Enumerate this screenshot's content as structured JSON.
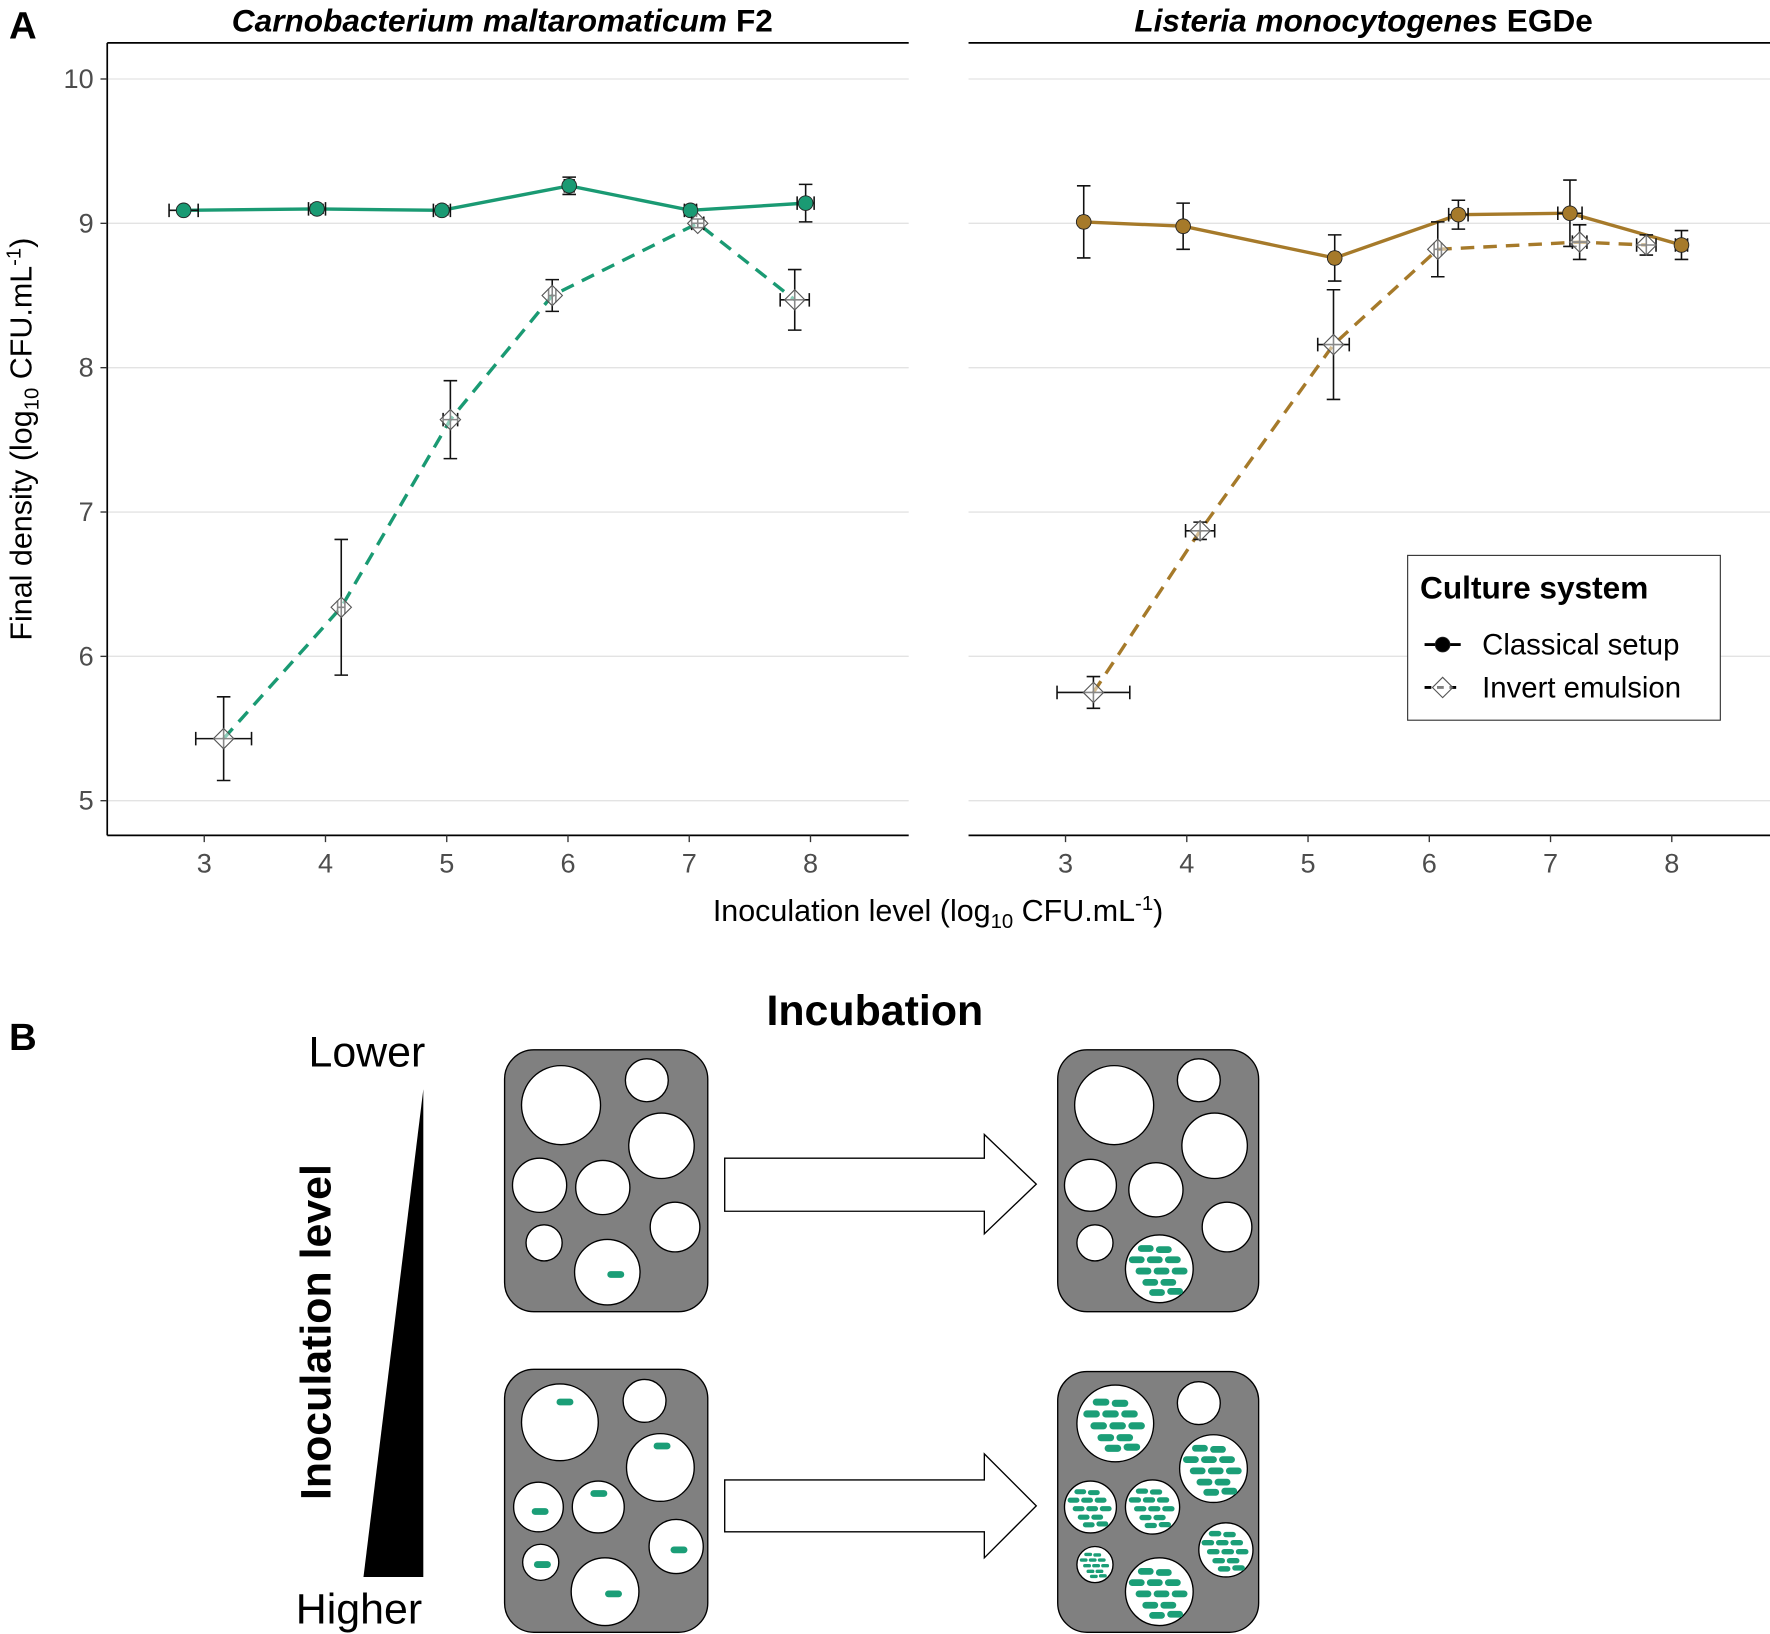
{
  "panel_labels": [
    "A",
    "B"
  ],
  "chart_data": {
    "type": "line",
    "x_label": {
      "pre": "Inoculation level (log",
      "sub": "10",
      "mid": " CFU.mL",
      "sup": "-1",
      "post": ")"
    },
    "y_label": {
      "pre": "Final density (log",
      "sub": "10",
      "mid": " CFU.mL",
      "sup": "-1",
      "post": ")"
    },
    "xlim": [
      2.2,
      8.81
    ],
    "ylim": [
      4.76,
      10.25
    ],
    "xticks": [
      3,
      4,
      5,
      6,
      7,
      8
    ],
    "yticks": [
      5,
      6,
      7,
      8,
      9,
      10
    ],
    "grid": "y",
    "legend": {
      "title": "Culture system",
      "position": "bottom-right"
    },
    "series": [
      {
        "name": "Classical setup",
        "linestyle": "solid",
        "marker": "circle"
      },
      {
        "name": "Invert emulsion",
        "linestyle": "dashed",
        "marker": "diamond"
      }
    ],
    "panels": [
      {
        "title": "Carnobacterium maltaromaticum",
        "title_strain": "F2",
        "color": "#1a9a73",
        "series": [
          {
            "x": [
              2.83,
              3.93,
              4.96,
              6.01,
              7.01,
              7.96
            ],
            "values": [
              9.09,
              9.1,
              9.09,
              9.26,
              9.09,
              9.14
            ],
            "xerr": [
              0.12,
              0.07,
              0.07,
              0.04,
              0.05,
              0.07
            ],
            "yerr": [
              0.02,
              0.03,
              0.03,
              0.06,
              0.03,
              0.13
            ]
          },
          {
            "x": [
              3.16,
              4.13,
              5.03,
              5.87,
              7.07,
              7.87
            ],
            "values": [
              5.43,
              6.34,
              7.64,
              8.5,
              9.0,
              8.47
            ],
            "xerr": [
              0.23,
              0.03,
              0.06,
              0.03,
              0.05,
              0.12
            ],
            "yerr": [
              0.29,
              0.47,
              0.27,
              0.11,
              0.03,
              0.21
            ]
          }
        ]
      },
      {
        "title": "Listeria monocytogenes",
        "title_strain": "EGDe",
        "color": "#a67a2a",
        "series": [
          {
            "x": [
              3.15,
              3.97,
              5.22,
              6.24,
              7.16,
              8.08
            ],
            "values": [
              9.01,
              8.98,
              8.76,
              9.06,
              9.07,
              8.85
            ],
            "xerr": [
              0.03,
              0.03,
              0.03,
              0.08,
              0.1,
              0.05
            ],
            "yerr": [
              0.25,
              0.16,
              0.16,
              0.1,
              0.23,
              0.1
            ]
          },
          {
            "x": [
              3.23,
              4.11,
              5.21,
              6.07,
              7.24,
              7.79
            ],
            "values": [
              5.75,
              6.87,
              8.16,
              8.82,
              8.87,
              8.85
            ],
            "xerr": [
              0.3,
              0.12,
              0.13,
              0.03,
              0.06,
              0.08
            ],
            "yerr": [
              0.11,
              0.06,
              0.38,
              0.19,
              0.12,
              0.07
            ]
          }
        ]
      }
    ]
  },
  "diagram": {
    "title": "Incubation",
    "axis_label": "Inoculation level",
    "top_label": "Lower",
    "bottom_label": "Higher"
  }
}
